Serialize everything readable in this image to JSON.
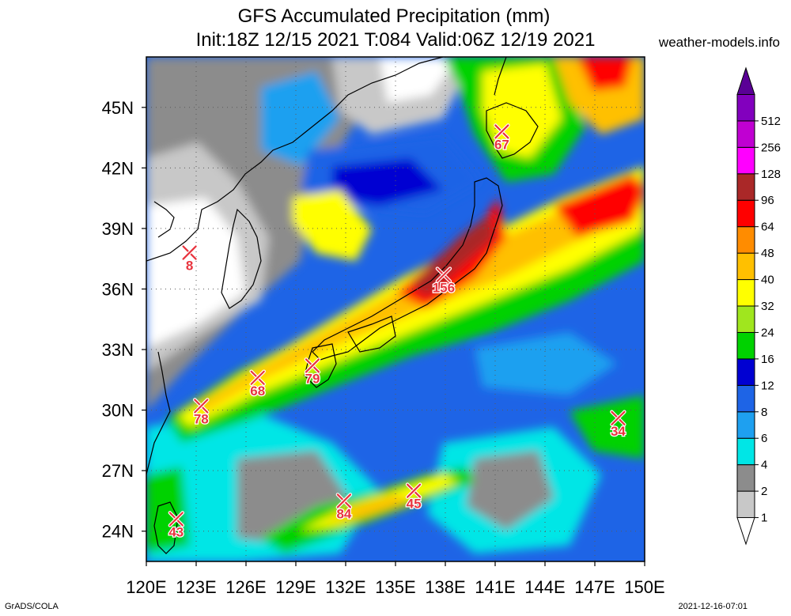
{
  "title_line1": "GFS Accumulated Precipitation (mm)",
  "title_line2": "Init:18Z 12/15 2021 T:084 Valid:06Z 12/19 2021",
  "brand": "weather-models.info",
  "footer_left": "GrADS/COLA",
  "footer_right": "2021-12-16-07:01",
  "map": {
    "lon_range": [
      120,
      150
    ],
    "lat_range": [
      22.5,
      47.5
    ],
    "x_ticks": [
      "120E",
      "123E",
      "126E",
      "129E",
      "132E",
      "135E",
      "138E",
      "141E",
      "144E",
      "147E",
      "150E"
    ],
    "y_ticks": [
      "24N",
      "27N",
      "30N",
      "33N",
      "36N",
      "39N",
      "42N",
      "45N"
    ],
    "grid": true
  },
  "colorbar": {
    "levels": [
      "1",
      "2",
      "4",
      "6",
      "8",
      "12",
      "16",
      "24",
      "32",
      "40",
      "48",
      "64",
      "96",
      "128",
      "256",
      "512"
    ],
    "colors": [
      "#ffffff",
      "#c8c8c8",
      "#8c8c8c",
      "#00e6e6",
      "#1ea0f0",
      "#1e64e6",
      "#0000d2",
      "#00d200",
      "#a0e61e",
      "#ffff00",
      "#ffc000",
      "#ff8c00",
      "#ff0000",
      "#aa2828",
      "#ff00ff",
      "#c000d2",
      "#8200be",
      "#5a0096"
    ]
  },
  "stations": [
    {
      "lon": 122.6,
      "lat": 37.8,
      "value": "8"
    },
    {
      "lon": 137.9,
      "lat": 36.7,
      "value": "156"
    },
    {
      "lon": 141.4,
      "lat": 43.8,
      "value": "67"
    },
    {
      "lon": 126.7,
      "lat": 31.6,
      "value": "68"
    },
    {
      "lon": 130.0,
      "lat": 32.2,
      "value": "79"
    },
    {
      "lon": 123.3,
      "lat": 30.2,
      "value": "78"
    },
    {
      "lon": 148.4,
      "lat": 29.6,
      "value": "34"
    },
    {
      "lon": 131.9,
      "lat": 25.5,
      "value": "84"
    },
    {
      "lon": 136.1,
      "lat": 26.0,
      "value": "45"
    },
    {
      "lon": 121.8,
      "lat": 24.6,
      "value": "43"
    }
  ]
}
